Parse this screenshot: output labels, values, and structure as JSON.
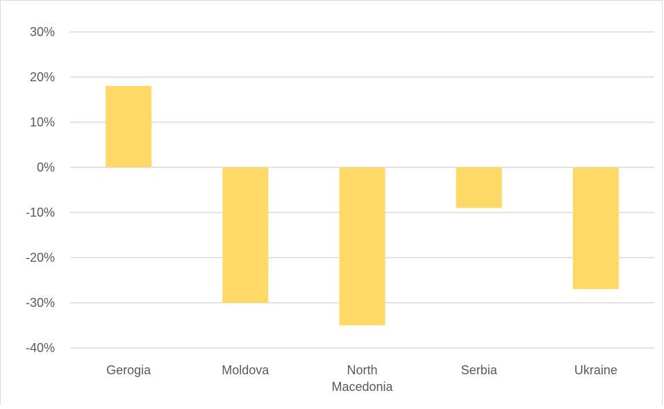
{
  "chart_data": {
    "type": "bar",
    "title": "",
    "xlabel": "",
    "ylabel": "",
    "categories": [
      "Gerogia",
      "Moldova",
      "North Macedonia",
      "Serbia",
      "Ukraine"
    ],
    "category_label_lines": [
      [
        "Gerogia"
      ],
      [
        "Moldova"
      ],
      [
        "North",
        "Macedonia"
      ],
      [
        "Serbia"
      ],
      [
        "Ukraine"
      ]
    ],
    "values": [
      18,
      -30,
      -35,
      -9,
      -27
    ],
    "value_unit": "%",
    "ylim": [
      -40,
      30
    ],
    "yticks": [
      30,
      20,
      10,
      0,
      -10,
      -20,
      -30,
      -40
    ],
    "ytick_labels": [
      "30%",
      "20%",
      "10%",
      "0%",
      "-10%",
      "-20%",
      "-30%",
      "-40%"
    ],
    "grid": true,
    "legend": "none",
    "bar_color": "#ffd966",
    "grid_color": "#d9d9d9",
    "label_color": "#595959"
  }
}
